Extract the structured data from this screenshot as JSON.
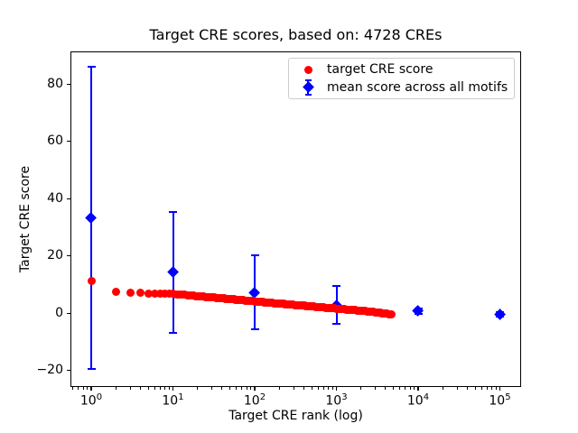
{
  "figure": {
    "title": "Target CRE scores, based on: 4728 CREs",
    "x_axis": {
      "label": "Target CRE rank (log)",
      "scale": "log",
      "tick_base": "10",
      "tick_exponents": [
        0,
        1,
        2,
        3,
        4,
        5
      ]
    },
    "y_axis": {
      "label": "Target CRE score",
      "tick_values": [
        -20,
        0,
        20,
        40,
        60,
        80
      ],
      "tick_labels": [
        "−20",
        "0",
        "20",
        "40",
        "60",
        "80"
      ]
    },
    "legend": {
      "position": "upper right",
      "entries": [
        {
          "label": "target CRE score",
          "marker": "circle",
          "color": "#ff0000"
        },
        {
          "label": "mean score across all motifs",
          "marker": "diamond-errorbar",
          "color": "#0000ff"
        }
      ]
    },
    "colors": {
      "red_series": "#ff0000",
      "blue_series": "#0000ff",
      "axis": "#000000",
      "legend_border": "#cccccc",
      "background": "#ffffff"
    }
  },
  "chart_data": {
    "type": "scatter",
    "title": "Target CRE scores, based on: 4728 CREs",
    "xlabel": "Target CRE rank (log)",
    "ylabel": "Target CRE score",
    "x_scale": "log",
    "xlim": [
      0.56,
      185000
    ],
    "ylim": [
      -25.5,
      91.5
    ],
    "grid": false,
    "legend_position": "upper right",
    "series": [
      {
        "name": "target CRE score",
        "type": "scatter",
        "marker": "circle",
        "color": "#ff0000",
        "n_points": 4728,
        "rank_range": [
          1,
          4728
        ],
        "anchor_points": [
          [
            1,
            11.3
          ],
          [
            2,
            7.4
          ],
          [
            3,
            7.1
          ],
          [
            5,
            6.9
          ],
          [
            10,
            6.7
          ],
          [
            20,
            5.9
          ],
          [
            50,
            4.9
          ],
          [
            100,
            4.1
          ],
          [
            200,
            3.3
          ],
          [
            500,
            2.3
          ],
          [
            1000,
            1.55
          ],
          [
            2000,
            0.8
          ],
          [
            3000,
            0.3
          ],
          [
            4728,
            -0.45
          ]
        ]
      },
      {
        "name": "mean score across all motifs",
        "type": "errorbar",
        "marker": "diamond",
        "color": "#0000ff",
        "points": [
          {
            "x": 1,
            "y": 33.2,
            "err": 52.8
          },
          {
            "x": 10,
            "y": 14.2,
            "err": 21.0
          },
          {
            "x": 100,
            "y": 7.2,
            "err": 13.0
          },
          {
            "x": 1000,
            "y": 2.8,
            "err": 6.6
          },
          {
            "x": 10000,
            "y": 0.6,
            "err": 1.0
          },
          {
            "x": 100000,
            "y": -0.6,
            "err": 0.8
          }
        ]
      }
    ]
  }
}
